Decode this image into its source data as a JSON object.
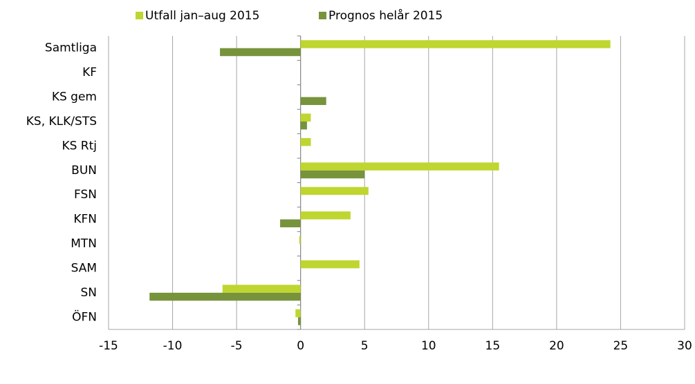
{
  "chart_data": {
    "type": "hbar",
    "categories": [
      "Samtliga",
      "KF",
      "KS gem",
      "KS, KLK/STS",
      "KS Rtj",
      "BUN",
      "FSN",
      "KFN",
      "MTN",
      "SAM",
      "SN",
      "ÖFN"
    ],
    "series": [
      {
        "name": "Utfall  jan–aug 2015",
        "color": "#bfd630",
        "values": [
          24.2,
          0,
          0,
          0.8,
          0.8,
          15.5,
          5.3,
          3.9,
          -0.1,
          4.6,
          -6.1,
          -0.4
        ]
      },
      {
        "name": "Prognos helår 2015",
        "color": "#77933c",
        "values": [
          -6.3,
          0,
          2.0,
          0.5,
          0,
          5.0,
          0,
          -1.6,
          0,
          0,
          -11.8,
          -0.2
        ]
      }
    ],
    "xlim": [
      -15,
      30
    ],
    "xticks": [
      -15,
      -10,
      -5,
      0,
      5,
      10,
      15,
      20,
      25,
      30
    ],
    "grid": true
  }
}
